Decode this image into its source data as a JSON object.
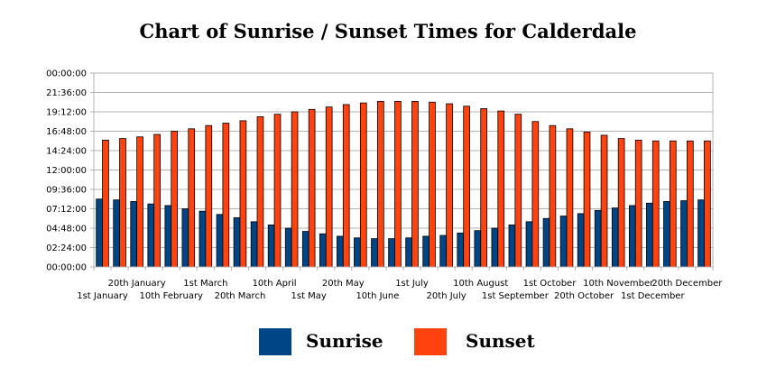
{
  "chart_data": {
    "type": "bar",
    "title": "Chart of Sunrise / Sunset Times for Calderdale",
    "xlabel": "",
    "ylabel": "",
    "ylim": [
      0,
      24
    ],
    "y_ticks": [
      "00:00:00",
      "02:24:00",
      "04:48:00",
      "07:12:00",
      "09:36:00",
      "12:00:00",
      "14:24:00",
      "16:48:00",
      "19:12:00",
      "21:36:00",
      "00:00:00"
    ],
    "x_tick_labels": [
      {
        "label": "1st January",
        "index": 0,
        "row": 2
      },
      {
        "label": "20th January",
        "index": 2,
        "row": 1
      },
      {
        "label": "10th February",
        "index": 4,
        "row": 2
      },
      {
        "label": "1st March",
        "index": 6,
        "row": 1
      },
      {
        "label": "20th March",
        "index": 8,
        "row": 2
      },
      {
        "label": "10th April",
        "index": 10,
        "row": 1
      },
      {
        "label": "1st May",
        "index": 12,
        "row": 2
      },
      {
        "label": "20th May",
        "index": 14,
        "row": 1
      },
      {
        "label": "10th June",
        "index": 16,
        "row": 2
      },
      {
        "label": "1st July",
        "index": 18,
        "row": 1
      },
      {
        "label": "20th July",
        "index": 20,
        "row": 2
      },
      {
        "label": "10th August",
        "index": 22,
        "row": 1
      },
      {
        "label": "1st September",
        "index": 24,
        "row": 2
      },
      {
        "label": "1st October",
        "index": 26,
        "row": 1
      },
      {
        "label": "20th October",
        "index": 28,
        "row": 2
      },
      {
        "label": "10th November",
        "index": 30,
        "row": 1
      },
      {
        "label": "1st December",
        "index": 32,
        "row": 2
      },
      {
        "label": "20th December",
        "index": 34,
        "row": 1
      }
    ],
    "grid": true,
    "legend_position": "bottom",
    "series": [
      {
        "name": "Sunrise",
        "color": "#004586",
        "values": [
          8.4,
          8.3,
          8.1,
          7.8,
          7.6,
          7.2,
          6.9,
          6.5,
          6.1,
          5.6,
          5.2,
          4.8,
          4.4,
          4.1,
          3.8,
          3.6,
          3.5,
          3.5,
          3.6,
          3.8,
          3.9,
          4.2,
          4.5,
          4.8,
          5.2,
          5.6,
          6.0,
          6.3,
          6.6,
          7.0,
          7.3,
          7.6,
          7.9,
          8.1,
          8.2,
          8.3
        ]
      },
      {
        "name": "Sunset",
        "color": "#FF420E",
        "values": [
          15.7,
          15.9,
          16.1,
          16.4,
          16.8,
          17.1,
          17.5,
          17.8,
          18.1,
          18.6,
          18.9,
          19.2,
          19.5,
          19.8,
          20.1,
          20.3,
          20.5,
          20.5,
          20.5,
          20.4,
          20.2,
          19.9,
          19.6,
          19.3,
          18.9,
          18.0,
          17.5,
          17.1,
          16.7,
          16.3,
          15.9,
          15.7,
          15.6,
          15.6,
          15.6,
          15.6
        ]
      }
    ]
  }
}
